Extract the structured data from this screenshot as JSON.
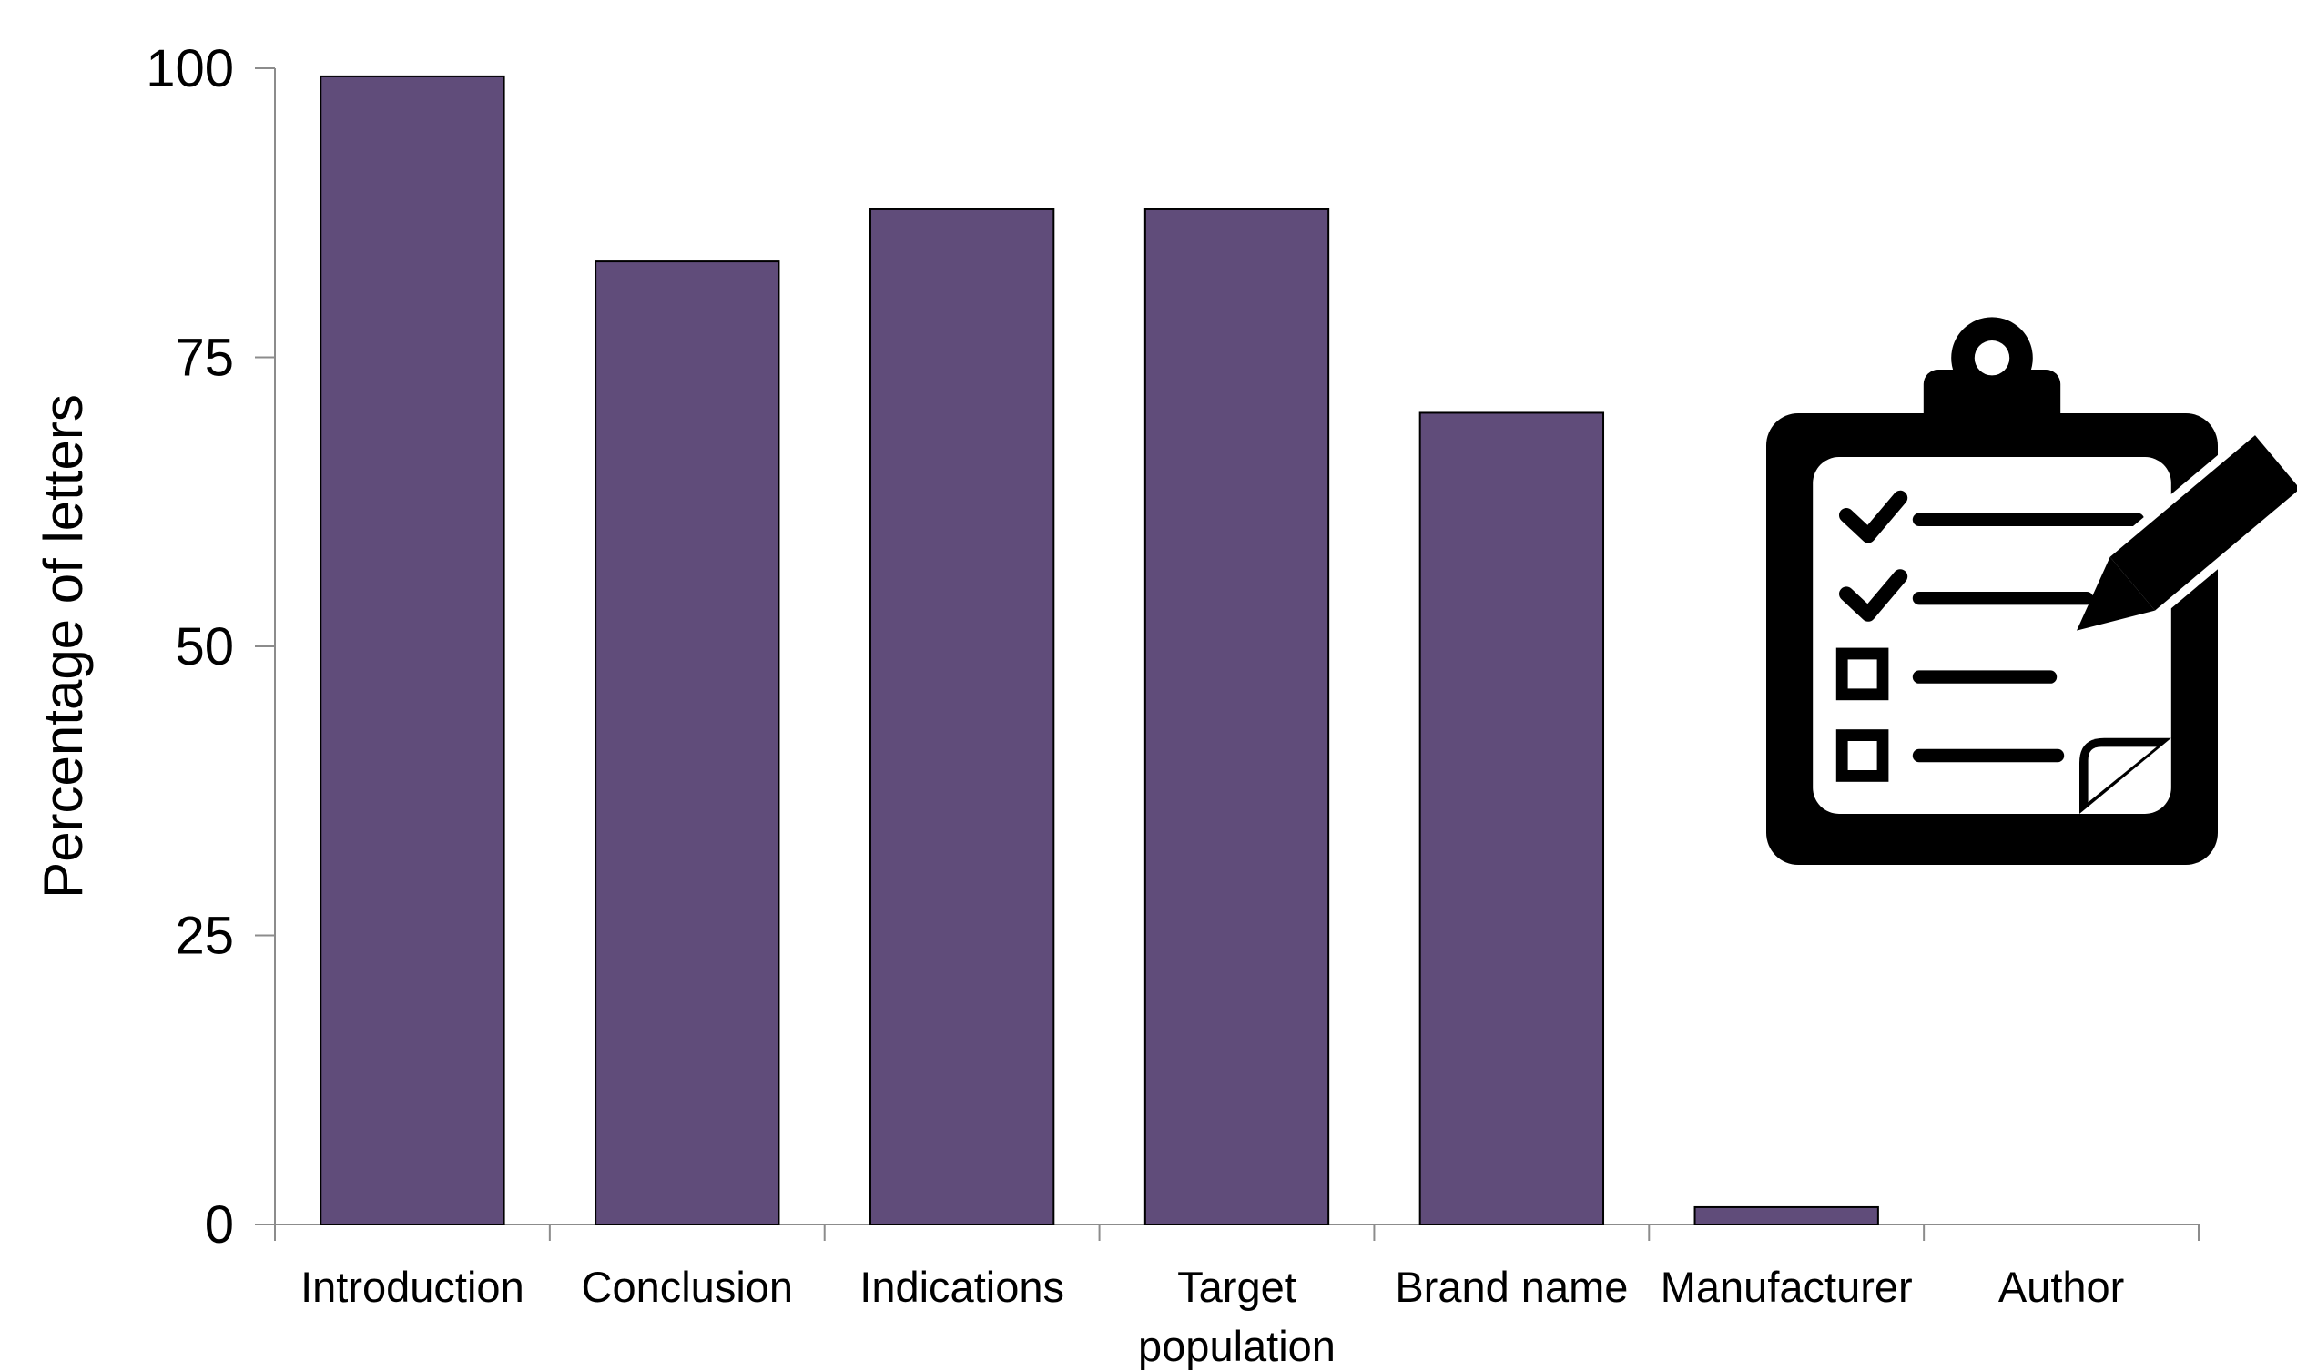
{
  "chart_data": {
    "type": "bar",
    "title": "",
    "xlabel": "",
    "ylabel": "Percentage of letters",
    "categories": [
      "Introduction",
      "Conclusion",
      "Indications",
      "Target population",
      "Brand name",
      "Manufacturer",
      "Author"
    ],
    "category_lines": [
      [
        "Introduction"
      ],
      [
        "Conclusion"
      ],
      [
        "Indications"
      ],
      [
        "Target",
        "population"
      ],
      [
        "Brand name"
      ],
      [
        "Manufacturer"
      ],
      [
        "Author"
      ]
    ],
    "values": [
      99.3,
      83.3,
      87.8,
      87.8,
      70.2,
      1.5,
      0
    ],
    "ylim": [
      0,
      100
    ],
    "yticks": [
      0,
      25,
      50,
      75,
      100
    ],
    "grid": false,
    "legend": "none",
    "bar_color": "#604C7A",
    "bar_edge_color": "#000000",
    "axis_color": "#8C8C8C"
  },
  "icons": {
    "clipboard_icon": "clipboard-checklist-with-pencil-icon",
    "icon_color": "#000000"
  }
}
